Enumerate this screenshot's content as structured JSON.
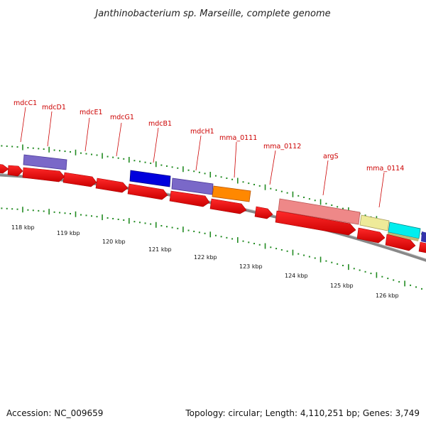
{
  "title": "Janthinobacterium sp. Marseille, complete genome",
  "accession": "Accession: NC_009659",
  "topology": "Topology: circular; Length: 4,110,251 bp; Genes: 3,749",
  "colors": {
    "forward_gene": "#ee0000",
    "backbone": "#888888",
    "tick": "#228b22",
    "label": "#cc0000"
  },
  "gene_labels": [
    "mdcC1",
    "mdcD1",
    "mdcE1",
    "mdcG1",
    "mdcB1",
    "mdcH1",
    "mma_0111",
    "mma_0112",
    "argS",
    "mma_0114"
  ],
  "kbp_labels": [
    "118 kbp",
    "119 kbp",
    "120 kbp",
    "121 kbp",
    "122 kbp",
    "123 kbp",
    "124 kbp",
    "125 kbp",
    "126 kbp"
  ],
  "feature_colors": [
    "#7a68c8",
    "#0000dd",
    "#7a68c8",
    "#ff8800",
    "#ee8888",
    "#eeea99",
    "#00eeee",
    "#3333aa"
  ]
}
